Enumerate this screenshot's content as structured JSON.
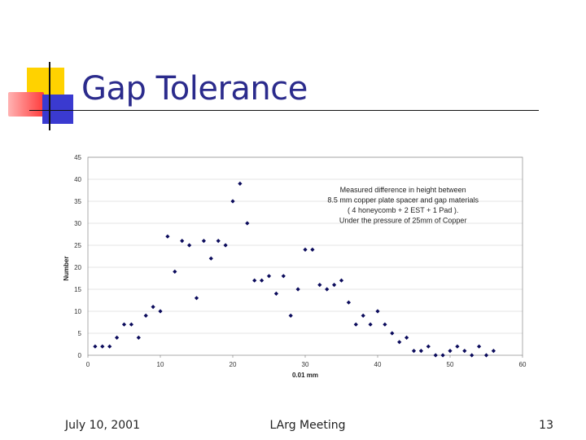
{
  "slide": {
    "title": "Gap Tolerance",
    "footer_date": "July 10, 2001",
    "footer_center": "LArg Meeting",
    "page_number": "13"
  },
  "colors": {
    "title": "#2b2b8c",
    "marker": "#0b0b5c",
    "accent_yellow": "#ffd200",
    "accent_red": "#ff3b3b",
    "accent_blue": "#3a3ad0"
  },
  "chart_data": {
    "type": "scatter",
    "title": "",
    "xlabel": "0.01 mm",
    "ylabel": "Number",
    "xlim": [
      0,
      60
    ],
    "ylim": [
      0,
      45
    ],
    "x_ticks": [
      "0",
      "10",
      "20",
      "30",
      "40",
      "50",
      "60"
    ],
    "y_ticks": [
      "0",
      "5",
      "10",
      "15",
      "20",
      "25",
      "30",
      "35",
      "40",
      "45"
    ],
    "annotation": [
      "Measured difference in height between",
      "8.5 mm copper plate spacer and gap materials",
      "( 4 honeycomb + 2 EST + 1 Pad ).",
      "Under the pressure of 25mm of Copper"
    ],
    "points": [
      [
        1,
        2
      ],
      [
        2,
        2
      ],
      [
        3,
        2
      ],
      [
        4,
        4
      ],
      [
        5,
        7
      ],
      [
        6,
        7
      ],
      [
        7,
        4
      ],
      [
        8,
        9
      ],
      [
        9,
        11
      ],
      [
        10,
        10
      ],
      [
        11,
        27
      ],
      [
        12,
        19
      ],
      [
        13,
        26
      ],
      [
        14,
        25
      ],
      [
        15,
        13
      ],
      [
        16,
        26
      ],
      [
        17,
        22
      ],
      [
        18,
        26
      ],
      [
        19,
        25
      ],
      [
        20,
        35
      ],
      [
        21,
        39
      ],
      [
        22,
        30
      ],
      [
        23,
        17
      ],
      [
        24,
        17
      ],
      [
        25,
        18
      ],
      [
        26,
        14
      ],
      [
        27,
        18
      ],
      [
        28,
        9
      ],
      [
        29,
        15
      ],
      [
        30,
        24
      ],
      [
        31,
        24
      ],
      [
        32,
        16
      ],
      [
        33,
        15
      ],
      [
        34,
        16
      ],
      [
        35,
        17
      ],
      [
        36,
        12
      ],
      [
        37,
        7
      ],
      [
        38,
        9
      ],
      [
        39,
        7
      ],
      [
        40,
        10
      ],
      [
        41,
        7
      ],
      [
        42,
        5
      ],
      [
        43,
        3
      ],
      [
        44,
        4
      ],
      [
        45,
        1
      ],
      [
        46,
        1
      ],
      [
        47,
        2
      ],
      [
        48,
        0
      ],
      [
        49,
        0
      ],
      [
        50,
        1
      ],
      [
        51,
        2
      ],
      [
        52,
        1
      ],
      [
        53,
        0
      ],
      [
        54,
        2
      ],
      [
        55,
        0
      ],
      [
        56,
        1
      ]
    ]
  }
}
